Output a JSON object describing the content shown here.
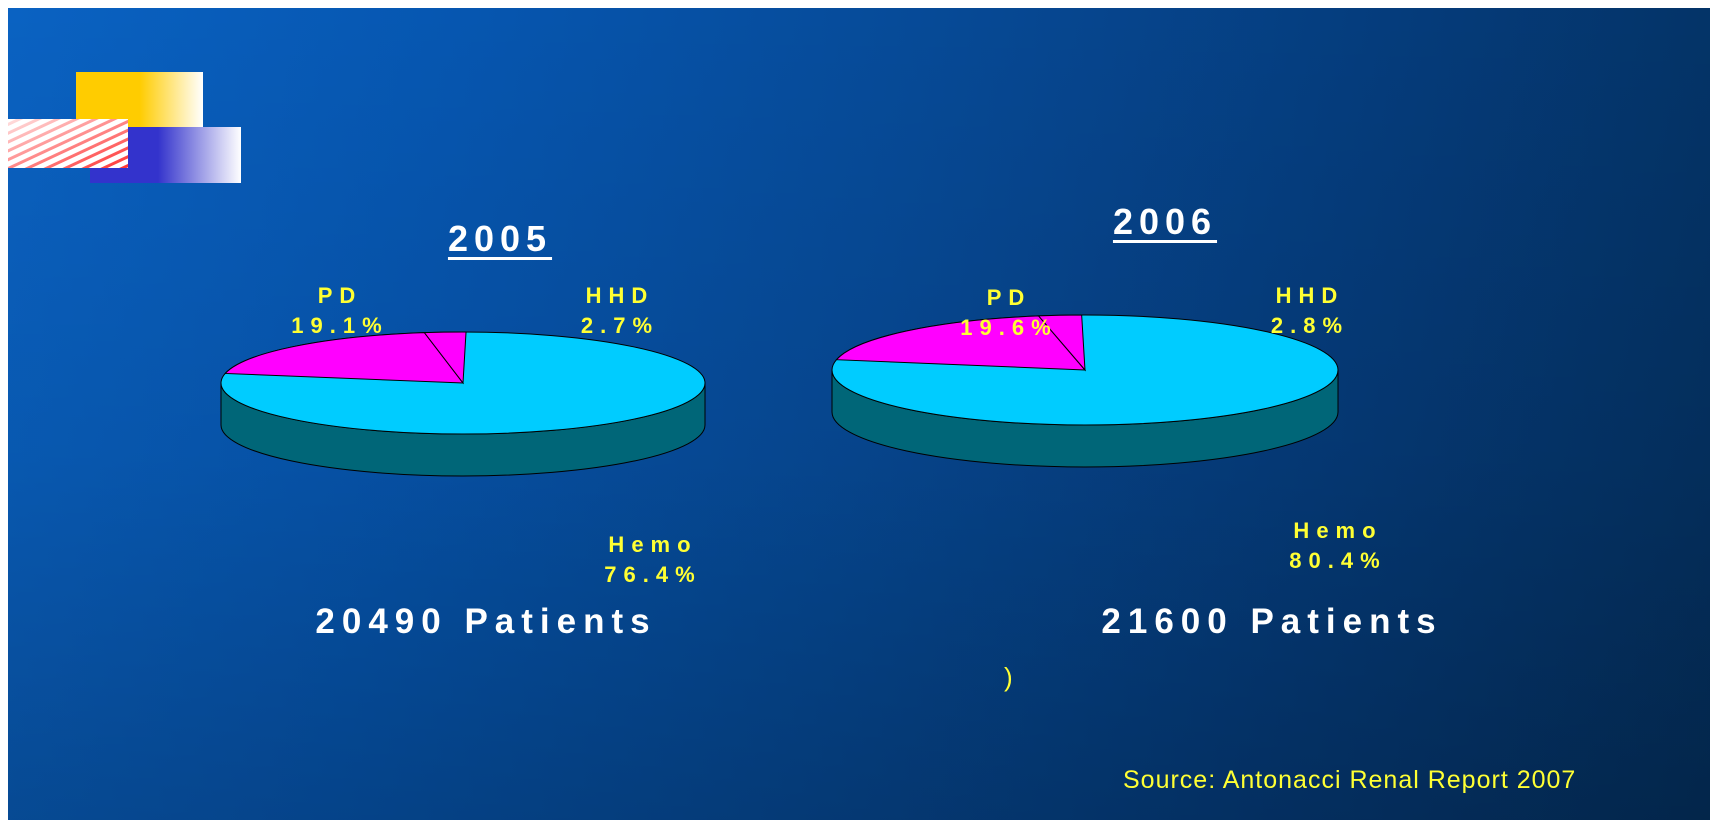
{
  "colors": {
    "hemo_top": "#00ccff",
    "hemo_side": "#006678",
    "pd": "#ff00ff",
    "hhd": "#ff00ff",
    "label": "#ffff33",
    "title": "#ffffff"
  },
  "chart_data": [
    {
      "type": "pie",
      "title": "2005",
      "caption": "20490 Patients",
      "categories": [
        "PD",
        "HHD",
        "Hemo"
      ],
      "values": [
        19.1,
        2.7,
        76.4
      ],
      "labels": {
        "pd_name": "PD",
        "pd_value": "19.1%",
        "hhd_name": "HHD",
        "hhd_value": "2.7%",
        "hemo_name": "Hemo",
        "hemo_value": "76.4%"
      }
    },
    {
      "type": "pie",
      "title": "2006",
      "caption": "21600 Patients",
      "categories": [
        "PD",
        "HHD",
        "Hemo"
      ],
      "values": [
        19.6,
        2.8,
        80.4
      ],
      "labels": {
        "pd_name": "PD",
        "pd_value": "19.6%",
        "hhd_name": "HHD",
        "hhd_value": "2.8%",
        "hemo_name": "Hemo",
        "hemo_value": "80.4%"
      }
    }
  ],
  "footnote_mark": ")",
  "source": "Source: Antonacci Renal Report 2007"
}
